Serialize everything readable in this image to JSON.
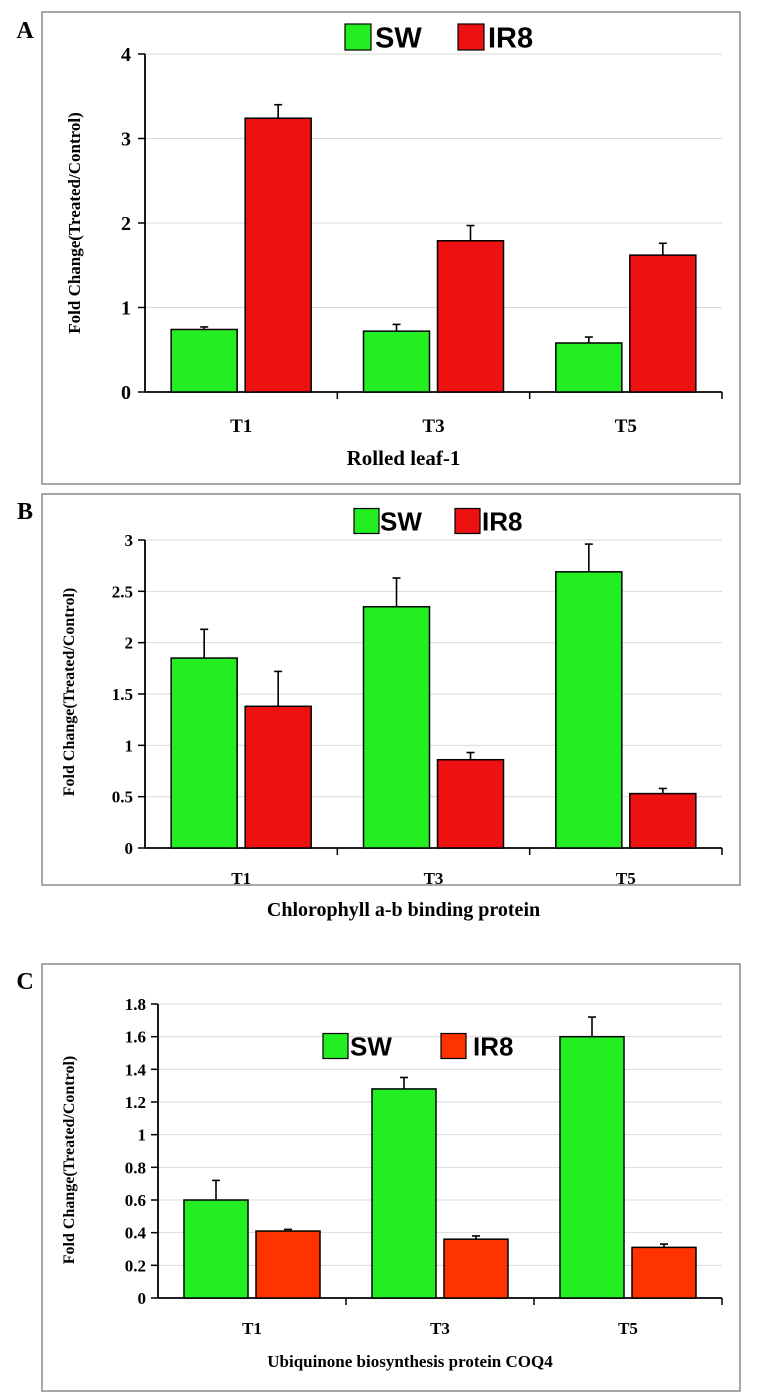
{
  "chart_data": [
    {
      "panel_label": "A",
      "type": "bar",
      "categories": [
        "T1",
        "T3",
        "T5"
      ],
      "series": [
        {
          "name": "SW",
          "values": [
            0.74,
            0.72,
            0.58
          ],
          "errors": [
            0.03,
            0.08,
            0.07
          ],
          "color": "#22ee22"
        },
        {
          "name": "IR8",
          "values": [
            3.24,
            1.79,
            1.62
          ],
          "errors": [
            0.16,
            0.18,
            0.14
          ],
          "color": "#ee1111"
        }
      ],
      "xlabel": "Rolled leaf-1",
      "ylabel": "Fold Change(Treated/Control)",
      "ylim": [
        0,
        4
      ],
      "yticks": [
        "0",
        "1",
        "2",
        "3",
        "4"
      ],
      "grid": true,
      "legend": "top-center"
    },
    {
      "panel_label": "B",
      "type": "bar",
      "categories": [
        "T1",
        "T3",
        "T5"
      ],
      "series": [
        {
          "name": "SW",
          "values": [
            1.85,
            2.35,
            2.69
          ],
          "errors": [
            0.28,
            0.28,
            0.27
          ],
          "color": "#22ee22"
        },
        {
          "name": "IR8",
          "values": [
            1.38,
            0.86,
            0.53
          ],
          "errors": [
            0.34,
            0.07,
            0.05
          ],
          "color": "#ee1111"
        }
      ],
      "xlabel": "Chlorophyll a-b binding protein",
      "ylabel": "Fold Change(Treated/Control)",
      "ylim": [
        0,
        3
      ],
      "yticks": [
        "0",
        "0.5",
        "1",
        "1.5",
        "2",
        "2.5",
        "3"
      ],
      "grid": true,
      "legend": "top-center"
    },
    {
      "panel_label": "C",
      "type": "bar",
      "categories": [
        "T1",
        "T3",
        "T5"
      ],
      "series": [
        {
          "name": "SW",
          "values": [
            0.6,
            1.28,
            1.6
          ],
          "errors": [
            0.12,
            0.07,
            0.12
          ],
          "color": "#22ee22"
        },
        {
          "name": "IR8",
          "values": [
            0.41,
            0.36,
            0.31
          ],
          "errors": [
            0.01,
            0.02,
            0.02
          ],
          "color": "#ff3300"
        }
      ],
      "xlabel": "Ubiquinone biosynthesis protein COQ4",
      "ylabel": "Fold Change(Treated/Control)",
      "ylim": [
        0,
        1.8
      ],
      "yticks": [
        "0",
        "0.2",
        "0.4",
        "0.6",
        "0.8",
        "1",
        "1.2",
        "1.4",
        "1.6",
        "1.8"
      ],
      "grid": true,
      "legend": "top-center"
    }
  ]
}
